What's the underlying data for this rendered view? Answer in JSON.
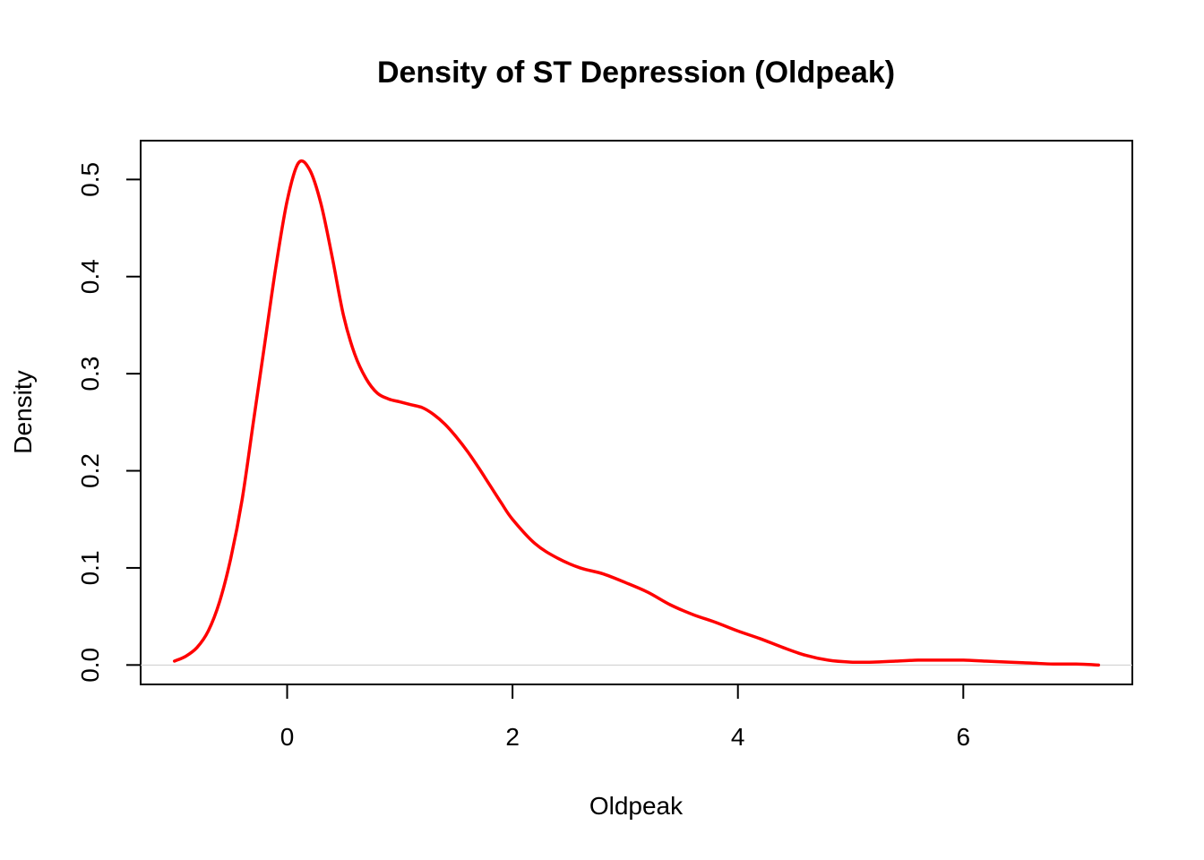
{
  "chart_data": {
    "type": "line",
    "title": "Density of ST Depression (Oldpeak)",
    "xlabel": "Oldpeak",
    "ylabel": "Density",
    "xlim": [
      -1.3,
      7.5
    ],
    "ylim": [
      -0.02,
      0.54
    ],
    "x_ticks": [
      0,
      2,
      4,
      6
    ],
    "x_tick_labels": [
      "0",
      "2",
      "4",
      "6"
    ],
    "y_ticks": [
      0.0,
      0.1,
      0.2,
      0.3,
      0.4,
      0.5
    ],
    "y_tick_labels": [
      "0.0",
      "0.1",
      "0.2",
      "0.3",
      "0.4",
      "0.5"
    ],
    "grid": false,
    "legend": "none",
    "line_color": "#ff0000",
    "baseline_color": "#cccccc",
    "series": [
      {
        "values": [
          [
            -1.0,
            0.004
          ],
          [
            -0.9,
            0.009
          ],
          [
            -0.8,
            0.018
          ],
          [
            -0.7,
            0.035
          ],
          [
            -0.6,
            0.065
          ],
          [
            -0.5,
            0.11
          ],
          [
            -0.4,
            0.17
          ],
          [
            -0.3,
            0.25
          ],
          [
            -0.2,
            0.33
          ],
          [
            -0.1,
            0.41
          ],
          [
            0.0,
            0.478
          ],
          [
            0.1,
            0.517
          ],
          [
            0.2,
            0.51
          ],
          [
            0.3,
            0.475
          ],
          [
            0.4,
            0.42
          ],
          [
            0.5,
            0.36
          ],
          [
            0.6,
            0.32
          ],
          [
            0.7,
            0.295
          ],
          [
            0.8,
            0.28
          ],
          [
            0.9,
            0.274
          ],
          [
            1.0,
            0.271
          ],
          [
            1.1,
            0.268
          ],
          [
            1.2,
            0.265
          ],
          [
            1.3,
            0.258
          ],
          [
            1.4,
            0.248
          ],
          [
            1.5,
            0.235
          ],
          [
            1.6,
            0.22
          ],
          [
            1.7,
            0.203
          ],
          [
            1.8,
            0.185
          ],
          [
            1.9,
            0.167
          ],
          [
            2.0,
            0.15
          ],
          [
            2.2,
            0.125
          ],
          [
            2.4,
            0.11
          ],
          [
            2.6,
            0.1
          ],
          [
            2.8,
            0.094
          ],
          [
            3.0,
            0.085
          ],
          [
            3.2,
            0.075
          ],
          [
            3.4,
            0.062
          ],
          [
            3.6,
            0.052
          ],
          [
            3.8,
            0.044
          ],
          [
            4.0,
            0.035
          ],
          [
            4.2,
            0.027
          ],
          [
            4.4,
            0.018
          ],
          [
            4.6,
            0.01
          ],
          [
            4.8,
            0.005
          ],
          [
            5.0,
            0.003
          ],
          [
            5.2,
            0.003
          ],
          [
            5.4,
            0.004
          ],
          [
            5.6,
            0.005
          ],
          [
            5.8,
            0.005
          ],
          [
            6.0,
            0.005
          ],
          [
            6.2,
            0.004
          ],
          [
            6.4,
            0.003
          ],
          [
            6.6,
            0.002
          ],
          [
            6.8,
            0.001
          ],
          [
            7.0,
            0.001
          ],
          [
            7.2,
            0.0
          ]
        ]
      }
    ]
  }
}
